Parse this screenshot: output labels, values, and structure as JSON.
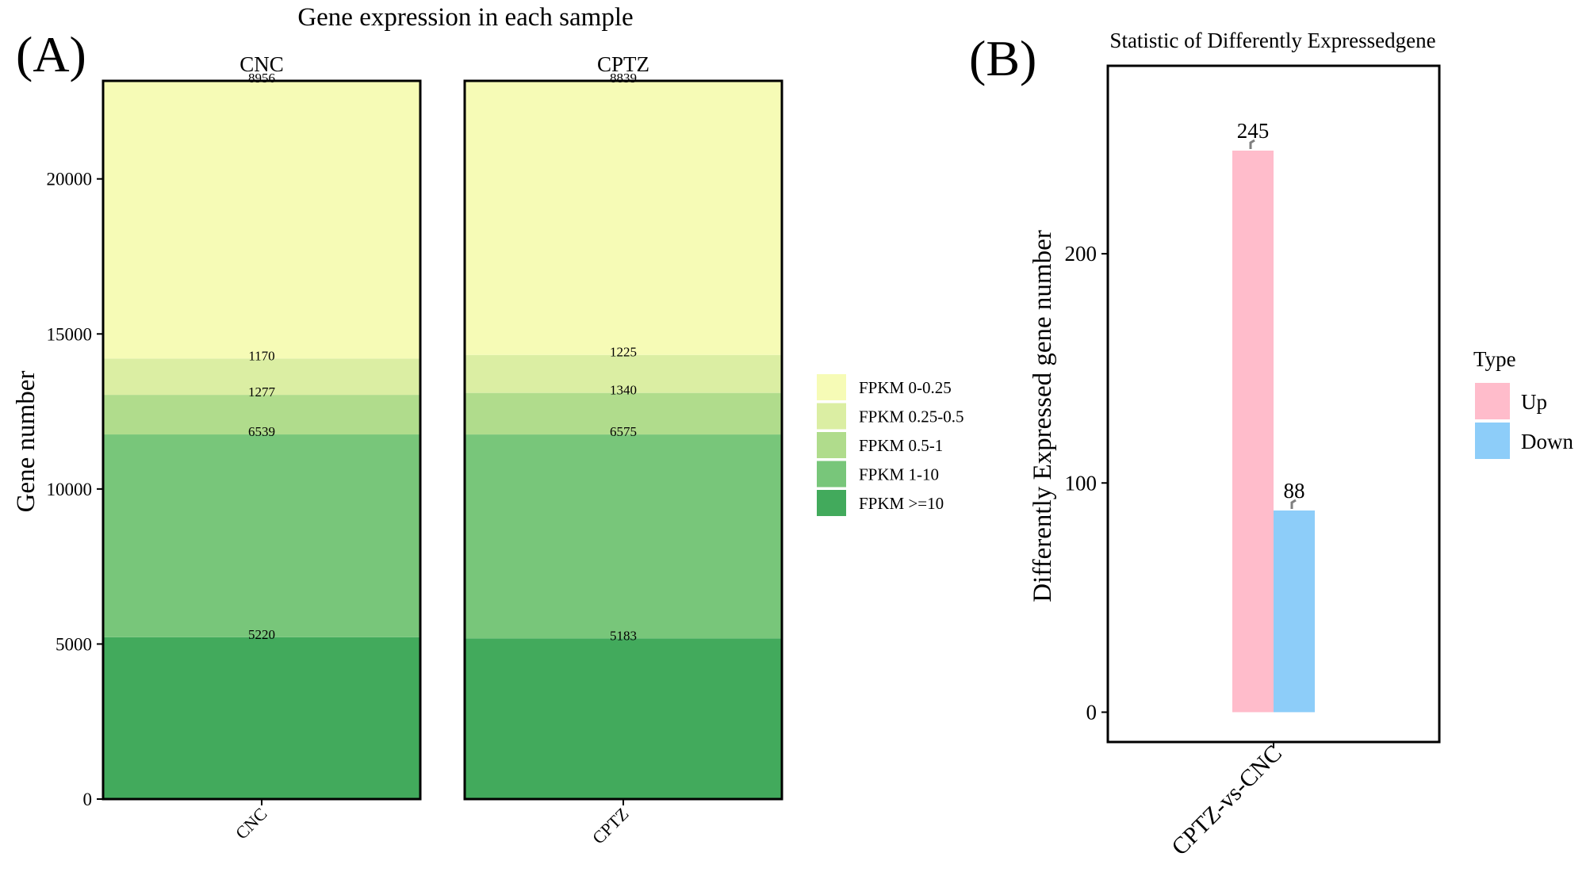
{
  "panel_labels": {
    "a": "(A)",
    "b": "(B)"
  },
  "colors": {
    "fpkm_0_025": "#f6fbb6",
    "fpkm_025_05": "#dbeea3",
    "fpkm_05_1": "#b0dc8c",
    "fpkm_1_10": "#78c67a",
    "fpkm_ge10": "#42aa5c",
    "up": "#ffbccb",
    "down": "#8dcdf9"
  },
  "chart_data": [
    {
      "type": "bar",
      "stacked": true,
      "title": "Gene expression in each sample",
      "xlabel": "",
      "ylabel": "Gene number",
      "ylim": [
        0,
        23162
      ],
      "yticks": [
        0,
        5000,
        10000,
        15000,
        20000
      ],
      "ytick_labels": [
        "0",
        "5000",
        "10000",
        "15000",
        "20000"
      ],
      "categories": [
        "CNC",
        "CPTZ"
      ],
      "facet_labels": [
        "CNC",
        "CPTZ"
      ],
      "legend_position": "right",
      "series": [
        {
          "name": "FPKM >=10",
          "color_key": "fpkm_ge10",
          "values": [
            5220,
            5183
          ]
        },
        {
          "name": "FPKM 1-10",
          "color_key": "fpkm_1_10",
          "values": [
            6539,
            6575
          ]
        },
        {
          "name": "FPKM 0.5-1",
          "color_key": "fpkm_05_1",
          "values": [
            1277,
            1340
          ]
        },
        {
          "name": "FPKM 0.25-0.5",
          "color_key": "fpkm_025_05",
          "values": [
            1170,
            1225
          ]
        },
        {
          "name": "FPKM 0-0.25",
          "color_key": "fpkm_0_025",
          "values": [
            8956,
            8839
          ]
        }
      ],
      "legend_order": [
        "FPKM 0-0.25",
        "FPKM 0.25-0.5",
        "FPKM 0.5-1",
        "FPKM 1-10",
        "FPKM >=10"
      ]
    },
    {
      "type": "bar",
      "title": "Statistic of Differently Expressedgene",
      "xlabel": "",
      "ylabel": "Differently Expressed gene number",
      "ylim": [
        -13,
        282
      ],
      "yticks": [
        0,
        100,
        200
      ],
      "ytick_labels": [
        "0",
        "100",
        "200"
      ],
      "categories": [
        "CPTZ-vs-CNC"
      ],
      "legend_title": "Type",
      "legend_position": "right",
      "series": [
        {
          "name": "Up",
          "color_key": "up",
          "values": [
            245
          ]
        },
        {
          "name": "Down",
          "color_key": "down",
          "values": [
            88
          ]
        }
      ]
    }
  ]
}
